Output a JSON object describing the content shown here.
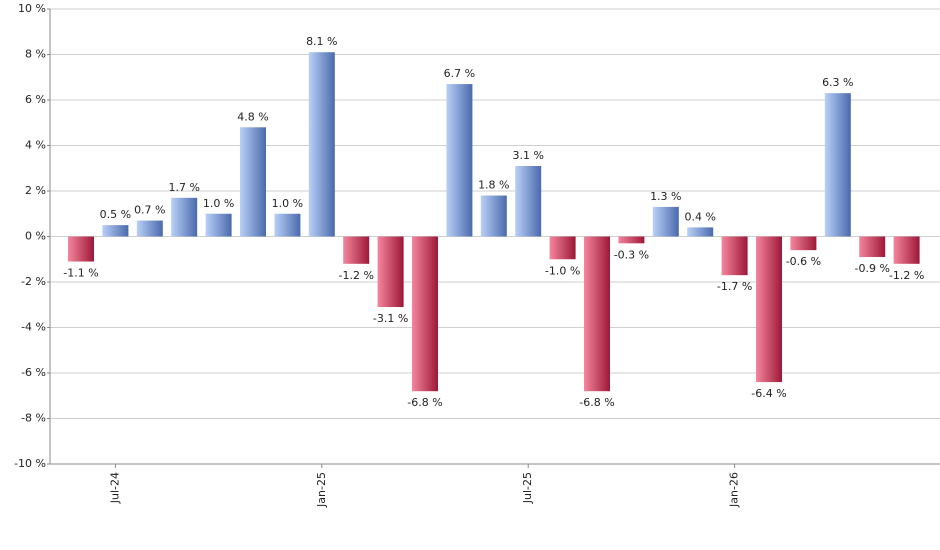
{
  "chart_data": {
    "type": "bar",
    "categories": [
      null,
      "Jul-24",
      null,
      null,
      null,
      null,
      null,
      "Jan-25",
      null,
      null,
      null,
      null,
      null,
      "Jul-25",
      null,
      null,
      null,
      null,
      null,
      "Jan-26",
      null,
      null,
      null,
      null,
      null
    ],
    "values": [
      -1.1,
      0.5,
      0.7,
      1.7,
      1.0,
      4.8,
      1.0,
      8.1,
      -1.2,
      -3.1,
      -6.8,
      6.7,
      1.8,
      3.1,
      -1.0,
      -6.8,
      -0.3,
      1.3,
      0.4,
      -1.7,
      -6.4,
      -0.6,
      6.3,
      -0.9,
      -1.2
    ],
    "value_labels": [
      "-1.1 %",
      "0.5 %",
      "0.7 %",
      "1.7 %",
      "1.0 %",
      "4.8 %",
      "1.0 %",
      "8.1 %",
      "-1.2 %",
      "-3.1 %",
      "-6.8 %",
      "6.7 %",
      "1.8 %",
      "3.1 %",
      "-1.0 %",
      "-6.8 %",
      "-0.3 %",
      "1.3 %",
      "0.4 %",
      "-1.7 %",
      "-6.4 %",
      "-0.6 %",
      "6.3 %",
      "-0.9 %",
      "-1.2 %"
    ],
    "positive_colors": [
      "#b9d0f7",
      "#4a6aad"
    ],
    "negative_colors": [
      "#f5869e",
      "#9c1836"
    ],
    "ylim": [
      -10,
      10
    ],
    "yticks": [
      {
        "value": -10,
        "label": "-10 %"
      },
      {
        "value": -8,
        "label": "-8 %"
      },
      {
        "value": -6,
        "label": "-6 %"
      },
      {
        "value": -4,
        "label": "-4 %"
      },
      {
        "value": -2,
        "label": "-2 %"
      },
      {
        "value": 0,
        "label": "0 %"
      },
      {
        "value": 2,
        "label": "2 %"
      },
      {
        "value": 4,
        "label": "4 %"
      },
      {
        "value": 6,
        "label": "6 %"
      },
      {
        "value": 8,
        "label": "8 %"
      },
      {
        "value": 10,
        "label": "10 %"
      }
    ],
    "grid": true
  }
}
